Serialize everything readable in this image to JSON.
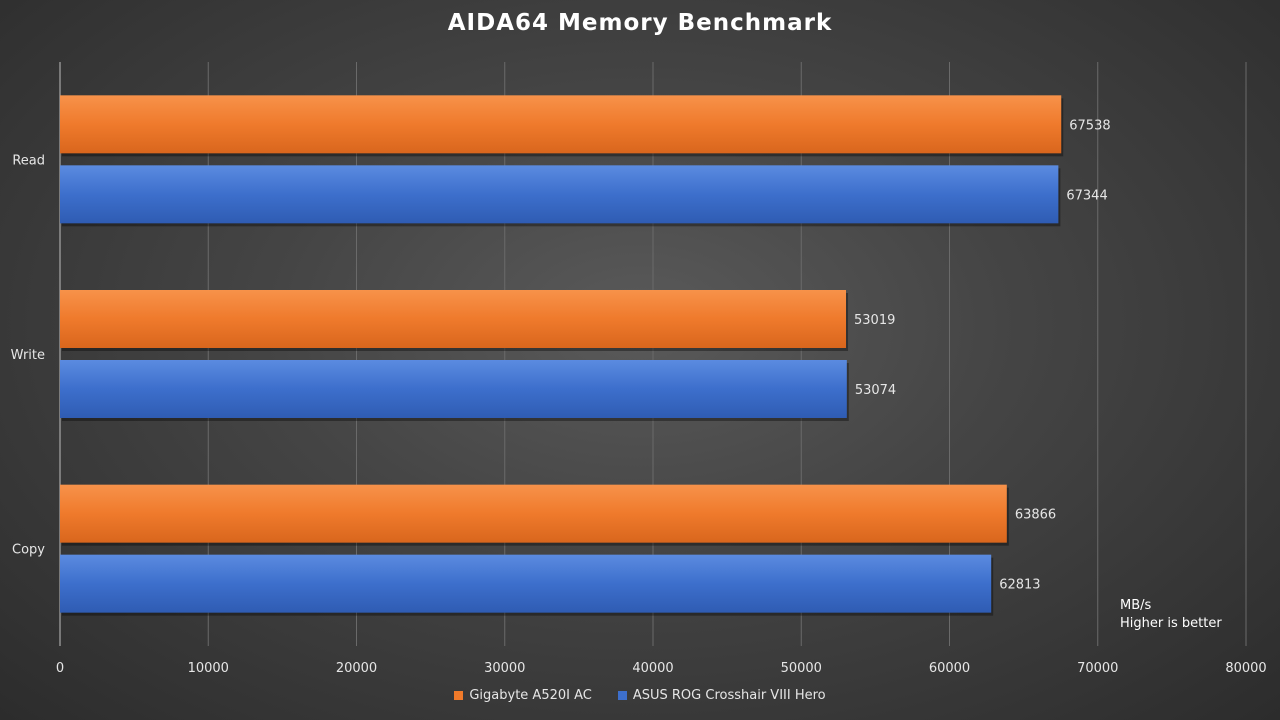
{
  "chart_data": {
    "type": "bar",
    "orientation": "horizontal",
    "title": "AIDA64  Memory  Benchmark",
    "categories": [
      "Read",
      "Write",
      "Copy"
    ],
    "series": [
      {
        "name": "Gigabyte A520I AC",
        "color": "#f07a2a",
        "values": [
          67538,
          53019,
          63866
        ]
      },
      {
        "name": "ASUS ROG Crosshair VIII Hero",
        "color": "#3d6fcc",
        "values": [
          67344,
          53074,
          62813
        ]
      }
    ],
    "xlim": [
      0,
      80000
    ],
    "xticks": [
      "0",
      "10000",
      "20000",
      "30000",
      "40000",
      "50000",
      "60000",
      "70000",
      "80000"
    ],
    "grid": "vertical",
    "legend_position": "bottom",
    "note": {
      "unit": "MB/s",
      "text": "Higher is better"
    }
  }
}
